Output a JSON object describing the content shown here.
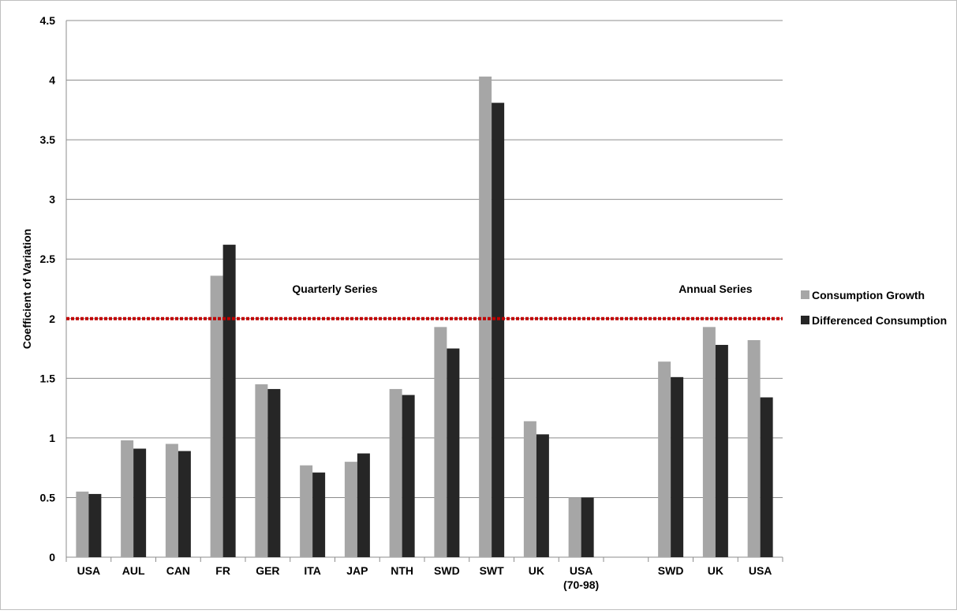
{
  "chart_data": {
    "type": "bar",
    "title": "",
    "xlabel": "",
    "ylabel": "Coefficient of Variation",
    "ylim": [
      0,
      4.5
    ],
    "yticks": [
      "0",
      "0.5",
      "1",
      "1.5",
      "2",
      "2.5",
      "3",
      "3.5",
      "4",
      "4.5"
    ],
    "grid": "horizontal",
    "legend_position": "right",
    "categories": [
      [
        "USA"
      ],
      [
        "AUL"
      ],
      [
        "CAN"
      ],
      [
        "FR"
      ],
      [
        "GER"
      ],
      [
        "ITA"
      ],
      [
        "JAP"
      ],
      [
        "NTH"
      ],
      [
        "SWD"
      ],
      [
        "SWT"
      ],
      [
        "UK"
      ],
      [
        "USA",
        "(70-98)"
      ],
      [
        ""
      ],
      [
        "SWD"
      ],
      [
        "UK"
      ],
      [
        "USA"
      ]
    ],
    "series": [
      {
        "name": "Consumption Growth",
        "color": "#a6a6a6",
        "values": [
          0.55,
          0.98,
          0.95,
          2.36,
          1.45,
          0.77,
          0.8,
          1.41,
          1.93,
          4.03,
          1.14,
          0.5,
          null,
          1.64,
          1.93,
          1.82
        ]
      },
      {
        "name": "Differenced Consumption",
        "color": "#262626",
        "values": [
          0.53,
          0.91,
          0.89,
          2.62,
          1.41,
          0.71,
          0.87,
          1.36,
          1.75,
          3.81,
          1.03,
          0.5,
          null,
          1.51,
          1.78,
          1.34
        ]
      }
    ],
    "reference_line": {
      "value": 2.0,
      "color": "#c00000",
      "style": "dotted"
    },
    "annotations": [
      {
        "text": "Quarterly Series",
        "category_index": 5.5,
        "y": 2.25
      },
      {
        "text": "Annual Series",
        "category_index": 14,
        "y": 2.25
      }
    ]
  }
}
